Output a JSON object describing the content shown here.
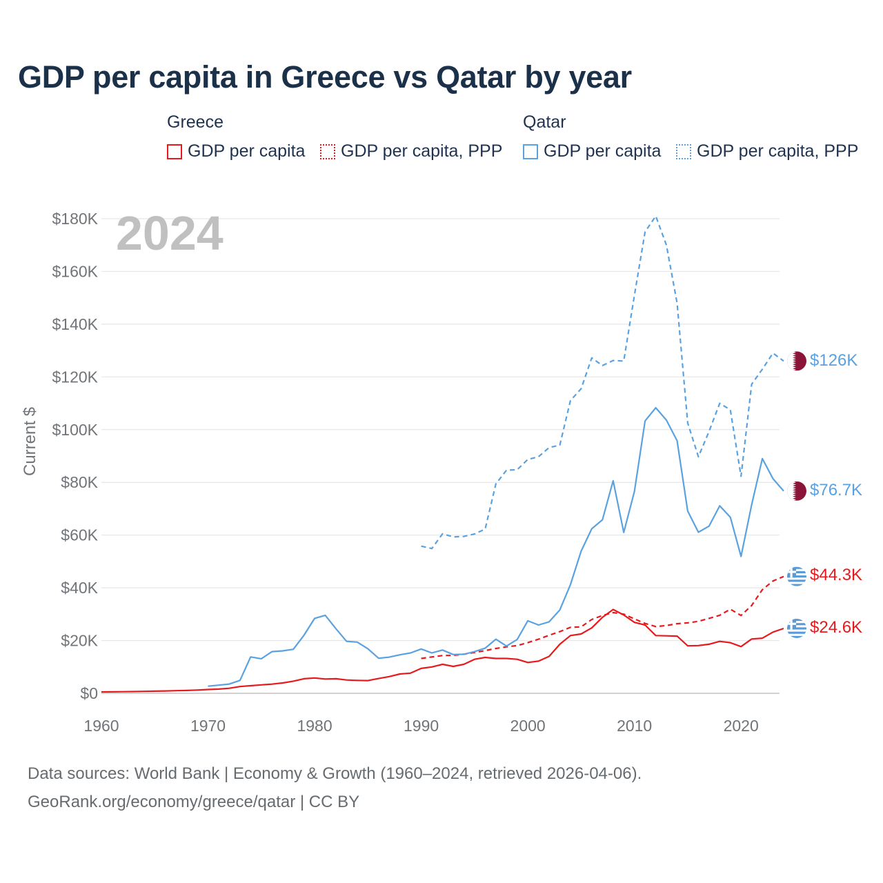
{
  "title": "GDP per capita in Greece vs Qatar by year",
  "legend": {
    "groups": [
      {
        "name": "Greece",
        "items": [
          {
            "label": "GDP per capita",
            "style": "solid",
            "color": "#e8191c"
          },
          {
            "label": "GDP per capita, PPP",
            "style": "dotted",
            "color": "#e8191c"
          }
        ]
      },
      {
        "name": "Qatar",
        "items": [
          {
            "label": "GDP per capita",
            "style": "solid",
            "color": "#5aa1e0"
          },
          {
            "label": "GDP per capita, PPP",
            "style": "dotted",
            "color": "#5aa1e0"
          }
        ]
      }
    ]
  },
  "year_label": "2024",
  "end_labels": {
    "qatar_ppp": "$126K",
    "qatar_gdp": "$76.7K",
    "greece_ppp": "$44.3K",
    "greece_gdp": "$24.6K"
  },
  "footer": {
    "line1": "Data sources: World Bank | Economy & Growth (1960–2024, retrieved 2026-04-06).",
    "line2": "GeoRank.org/economy/greece/qatar | CC BY"
  },
  "chart_data": {
    "type": "line",
    "title": "GDP per capita in Greece vs Qatar by year",
    "xlabel": "",
    "ylabel": "Current $",
    "xlim": [
      1960,
      2024
    ],
    "ylim": [
      0,
      180000
    ],
    "x_ticks": [
      1960,
      1970,
      1980,
      1990,
      2000,
      2010,
      2020
    ],
    "y_ticks": [
      0,
      20000,
      40000,
      60000,
      80000,
      100000,
      120000,
      140000,
      160000,
      180000
    ],
    "y_tick_labels": [
      "$0",
      "$20K",
      "$40K",
      "$60K",
      "$80K",
      "$100K",
      "$120K",
      "$140K",
      "$160K",
      "$180K"
    ],
    "grid": true,
    "series": [
      {
        "name": "Greece GDP per capita",
        "country": "Greece",
        "style": "solid",
        "color": "#e8191c",
        "x": [
          1960,
          1961,
          1962,
          1963,
          1964,
          1965,
          1966,
          1967,
          1968,
          1969,
          1970,
          1971,
          1972,
          1973,
          1974,
          1975,
          1976,
          1977,
          1978,
          1979,
          1980,
          1981,
          1982,
          1983,
          1984,
          1985,
          1986,
          1987,
          1988,
          1989,
          1990,
          1991,
          1992,
          1993,
          1994,
          1995,
          1996,
          1997,
          1998,
          1999,
          2000,
          2001,
          2002,
          2003,
          2004,
          2005,
          2006,
          2007,
          2008,
          2009,
          2010,
          2011,
          2012,
          2013,
          2014,
          2015,
          2016,
          2017,
          2018,
          2019,
          2020,
          2021,
          2022,
          2023,
          2024
        ],
        "values": [
          520,
          560,
          600,
          660,
          730,
          810,
          900,
          990,
          1070,
          1240,
          1430,
          1600,
          1900,
          2560,
          2880,
          3200,
          3480,
          3930,
          4600,
          5530,
          5800,
          5420,
          5520,
          5040,
          4890,
          4820,
          5600,
          6340,
          7330,
          7640,
          9450,
          10000,
          11000,
          10200,
          11000,
          12900,
          13600,
          13200,
          13200,
          12900,
          11700,
          12200,
          14000,
          18600,
          21900,
          22500,
          24800,
          28800,
          31800,
          29700,
          26900,
          25900,
          21900,
          21800,
          21700,
          18000,
          18100,
          18600,
          19700,
          19200,
          17700,
          20600,
          20900,
          23200,
          24600
        ]
      },
      {
        "name": "Greece GDP per capita, PPP",
        "country": "Greece",
        "style": "dotted",
        "color": "#e8191c",
        "x": [
          1990,
          1991,
          1992,
          1993,
          1994,
          1995,
          1996,
          1997,
          1998,
          1999,
          2000,
          2001,
          2002,
          2003,
          2004,
          2005,
          2006,
          2007,
          2008,
          2009,
          2010,
          2011,
          2012,
          2013,
          2014,
          2015,
          2016,
          2017,
          2018,
          2019,
          2020,
          2021,
          2022,
          2023,
          2024
        ],
        "values": [
          13200,
          13800,
          14300,
          14400,
          14800,
          15500,
          16200,
          17000,
          17600,
          18100,
          19200,
          20500,
          22000,
          23400,
          25000,
          25200,
          28000,
          29500,
          30600,
          30000,
          28200,
          26500,
          25300,
          25700,
          26400,
          26700,
          27300,
          28400,
          29600,
          31900,
          29500,
          33300,
          39300,
          42600,
          44300
        ]
      },
      {
        "name": "Qatar GDP per capita",
        "country": "Qatar",
        "style": "solid",
        "color": "#5aa1e0",
        "x": [
          1970,
          1971,
          1972,
          1973,
          1974,
          1975,
          1976,
          1977,
          1978,
          1979,
          1980,
          1981,
          1982,
          1983,
          1984,
          1985,
          1986,
          1987,
          1988,
          1989,
          1990,
          1991,
          1992,
          1993,
          1994,
          1995,
          1996,
          1997,
          1998,
          1999,
          2000,
          2001,
          2002,
          2003,
          2004,
          2005,
          2006,
          2007,
          2008,
          2009,
          2010,
          2011,
          2012,
          2013,
          2014,
          2015,
          2016,
          2017,
          2018,
          2019,
          2020,
          2021,
          2022,
          2023,
          2024
        ],
        "values": [
          2700,
          3100,
          3500,
          4900,
          13800,
          13100,
          15800,
          16100,
          16700,
          22000,
          28400,
          29600,
          24500,
          19700,
          19400,
          16900,
          13300,
          13700,
          14600,
          15300,
          16800,
          15300,
          16400,
          14700,
          14800,
          15800,
          17100,
          20500,
          17900,
          20400,
          27500,
          25900,
          27100,
          31600,
          41200,
          53900,
          62400,
          65800,
          80600,
          61000,
          76600,
          103300,
          108300,
          103600,
          95800,
          69100,
          61100,
          63400,
          71100,
          66800,
          51900,
          71500,
          89000,
          81400,
          76700
        ]
      },
      {
        "name": "Qatar GDP per capita, PPP",
        "country": "Qatar",
        "style": "dotted",
        "color": "#5aa1e0",
        "x": [
          1990,
          1991,
          1992,
          1993,
          1994,
          1995,
          1996,
          1997,
          1998,
          1999,
          2000,
          2001,
          2002,
          2003,
          2004,
          2005,
          2006,
          2007,
          2008,
          2009,
          2010,
          2011,
          2012,
          2013,
          2014,
          2015,
          2016,
          2017,
          2018,
          2019,
          2020,
          2021,
          2022,
          2023,
          2024
        ],
        "values": [
          55800,
          54900,
          60500,
          59300,
          59500,
          60400,
          62300,
          79400,
          84600,
          84800,
          88700,
          89700,
          93200,
          94100,
          111000,
          115500,
          127200,
          124300,
          126200,
          126000,
          151000,
          175000,
          181000,
          170000,
          148000,
          102500,
          89700,
          99300,
          110000,
          107500,
          82300,
          117200,
          122900,
          129000,
          126000
        ]
      }
    ]
  }
}
